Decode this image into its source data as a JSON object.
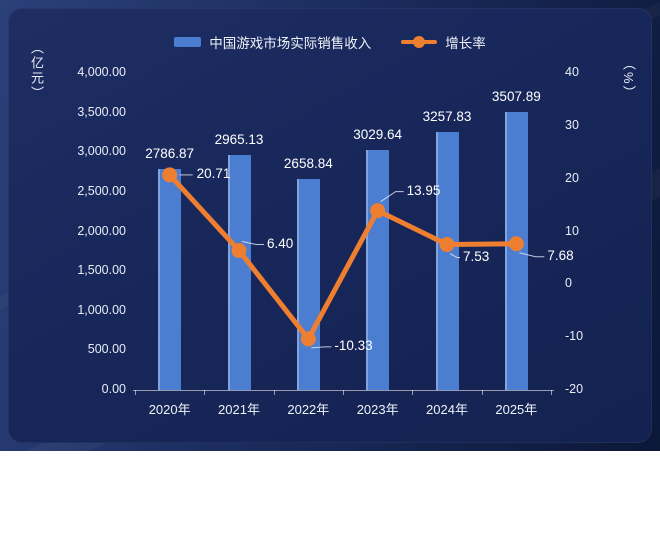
{
  "legend": {
    "items": [
      {
        "label": "中国游戏市场实际销售收入",
        "type": "bar"
      },
      {
        "label": "增长率",
        "type": "line"
      }
    ]
  },
  "colors": {
    "bar": "#4b7dd1",
    "bar_edge_highlight": "#7ba3e4",
    "line": "#ee7f30",
    "text": "#eef2f9",
    "axis_line": "rgba(255,255,255,0.55)",
    "card_background": "#18275a",
    "page_background": "#1b2c5e"
  },
  "chart_data": {
    "type": "bar+line combo",
    "categories": [
      "2020年",
      "2021年",
      "2022年",
      "2023年",
      "2024年",
      "2025年"
    ],
    "series": [
      {
        "name": "中国游戏市场实际销售收入",
        "type": "bar",
        "axis": "left",
        "values": [
          2786.87,
          2965.13,
          2658.84,
          3029.64,
          3257.83,
          3507.89
        ]
      },
      {
        "name": "增长率",
        "type": "line",
        "axis": "right",
        "values": [
          20.71,
          6.4,
          -10.33,
          13.95,
          7.53,
          7.68
        ],
        "label_offsets": [
          [
            27,
            0
          ],
          [
            28,
            -6
          ],
          [
            26,
            8
          ],
          [
            29,
            -19
          ],
          [
            16,
            13
          ],
          [
            31,
            13
          ]
        ]
      }
    ],
    "left_axis": {
      "title": "（亿元）",
      "min": 0,
      "max": 4000,
      "step": 500,
      "tick_format": "thousands, 2 decimals"
    },
    "right_axis": {
      "title": "（%）",
      "min": -20,
      "max": 40,
      "step": 10
    },
    "grid": false,
    "legend_position": "top-center",
    "data_labels": true
  }
}
